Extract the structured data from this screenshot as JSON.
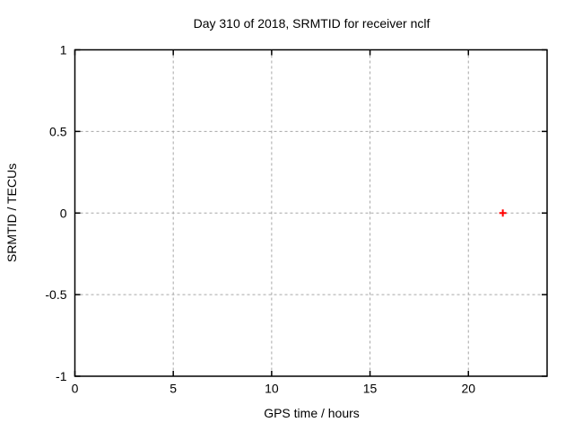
{
  "window": {
    "background": "#ffffff"
  },
  "colors": {
    "axis": "#000000",
    "text": "#000000",
    "grid": "#a6a6a6",
    "marker": "#ff0000",
    "background": "#ffffff"
  },
  "chart_data": {
    "type": "scatter",
    "title": "Day 310 of 2018, SRMTID for receiver nclf",
    "xlabel": "GPS time / hours",
    "ylabel": "SRMTID / TECUs",
    "xlim": [
      0,
      24
    ],
    "ylim": [
      -1,
      1
    ],
    "xticks": [
      0,
      5,
      10,
      15,
      20
    ],
    "xtick_labels": [
      "0",
      "5",
      "10",
      "15",
      "20"
    ],
    "yticks": [
      -1,
      -0.5,
      0,
      0.5,
      1
    ],
    "ytick_labels": [
      "-1",
      "-0.5",
      "0",
      "0.5",
      "1"
    ],
    "grid": true,
    "grid_style": "dashed",
    "legend": "none",
    "series": [
      {
        "name": "SRMTID",
        "marker": "plus",
        "color": "#ff0000",
        "points": [
          {
            "x": 21.75,
            "y": 0.0
          }
        ]
      }
    ]
  }
}
